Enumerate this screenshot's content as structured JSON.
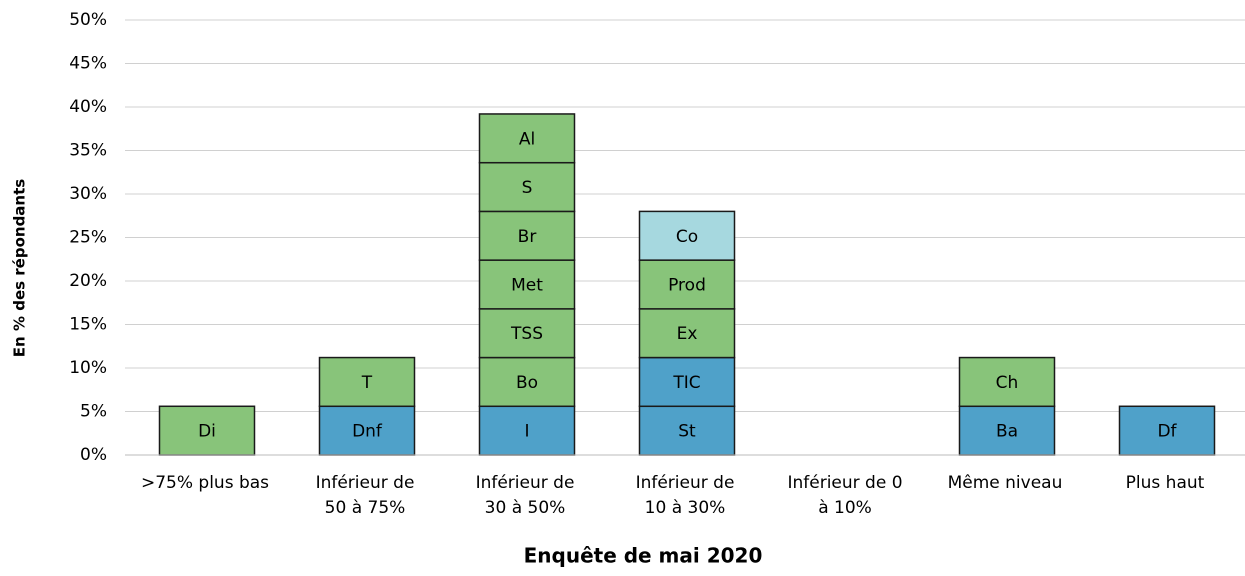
{
  "chart_data": {
    "type": "stacked-bar",
    "y_axis_label": "En % des répondants",
    "x_axis_label": "Enquête de mai 2020",
    "categories": [
      [
        ">75% plus bas"
      ],
      [
        "Inférieur de",
        "50 à 75%"
      ],
      [
        "Inférieur de",
        "30 à 50%"
      ],
      [
        "Inférieur de",
        "10 à 30%"
      ],
      [
        "Inférieur de 0",
        "à 10%"
      ],
      [
        "Même niveau"
      ],
      [
        "Plus haut"
      ]
    ],
    "stacks": [
      [
        {
          "label": "Di",
          "value": 5.6,
          "color": "#88c47a"
        }
      ],
      [
        {
          "label": "Dnf",
          "value": 5.6,
          "color": "#4fa1c9"
        },
        {
          "label": "T",
          "value": 5.6,
          "color": "#88c47a"
        }
      ],
      [
        {
          "label": "I",
          "value": 5.6,
          "color": "#4fa1c9"
        },
        {
          "label": "Bo",
          "value": 5.6,
          "color": "#88c47a"
        },
        {
          "label": "TSS",
          "value": 5.6,
          "color": "#88c47a"
        },
        {
          "label": "Met",
          "value": 5.6,
          "color": "#88c47a"
        },
        {
          "label": "Br",
          "value": 5.6,
          "color": "#88c47a"
        },
        {
          "label": "S",
          "value": 5.6,
          "color": "#88c47a"
        },
        {
          "label": "Al",
          "value": 5.6,
          "color": "#88c47a"
        }
      ],
      [
        {
          "label": "St",
          "value": 5.6,
          "color": "#4fa1c9"
        },
        {
          "label": "TIC",
          "value": 5.6,
          "color": "#4fa1c9"
        },
        {
          "label": "Ex",
          "value": 5.6,
          "color": "#88c47a"
        },
        {
          "label": "Prod",
          "value": 5.6,
          "color": "#88c47a"
        },
        {
          "label": "Co",
          "value": 5.6,
          "color": "#a6d8df"
        }
      ],
      [],
      [
        {
          "label": "Ba",
          "value": 5.6,
          "color": "#4fa1c9"
        },
        {
          "label": "Ch",
          "value": 5.6,
          "color": "#88c47a"
        }
      ],
      [
        {
          "label": "Df",
          "value": 5.6,
          "color": "#4fa1c9"
        }
      ]
    ],
    "ylim": [
      0,
      50
    ],
    "yticks": [
      {
        "value": 0,
        "label": "0%"
      },
      {
        "value": 5,
        "label": "5%"
      },
      {
        "value": 10,
        "label": "10%"
      },
      {
        "value": 15,
        "label": "15%"
      },
      {
        "value": 20,
        "label": "20%"
      },
      {
        "value": 25,
        "label": "25%"
      },
      {
        "value": 30,
        "label": "30%"
      },
      {
        "value": 35,
        "label": "35%"
      },
      {
        "value": 40,
        "label": "40%"
      },
      {
        "value": 45,
        "label": "45%"
      },
      {
        "value": 50,
        "label": "50%"
      }
    ],
    "grid": true
  }
}
